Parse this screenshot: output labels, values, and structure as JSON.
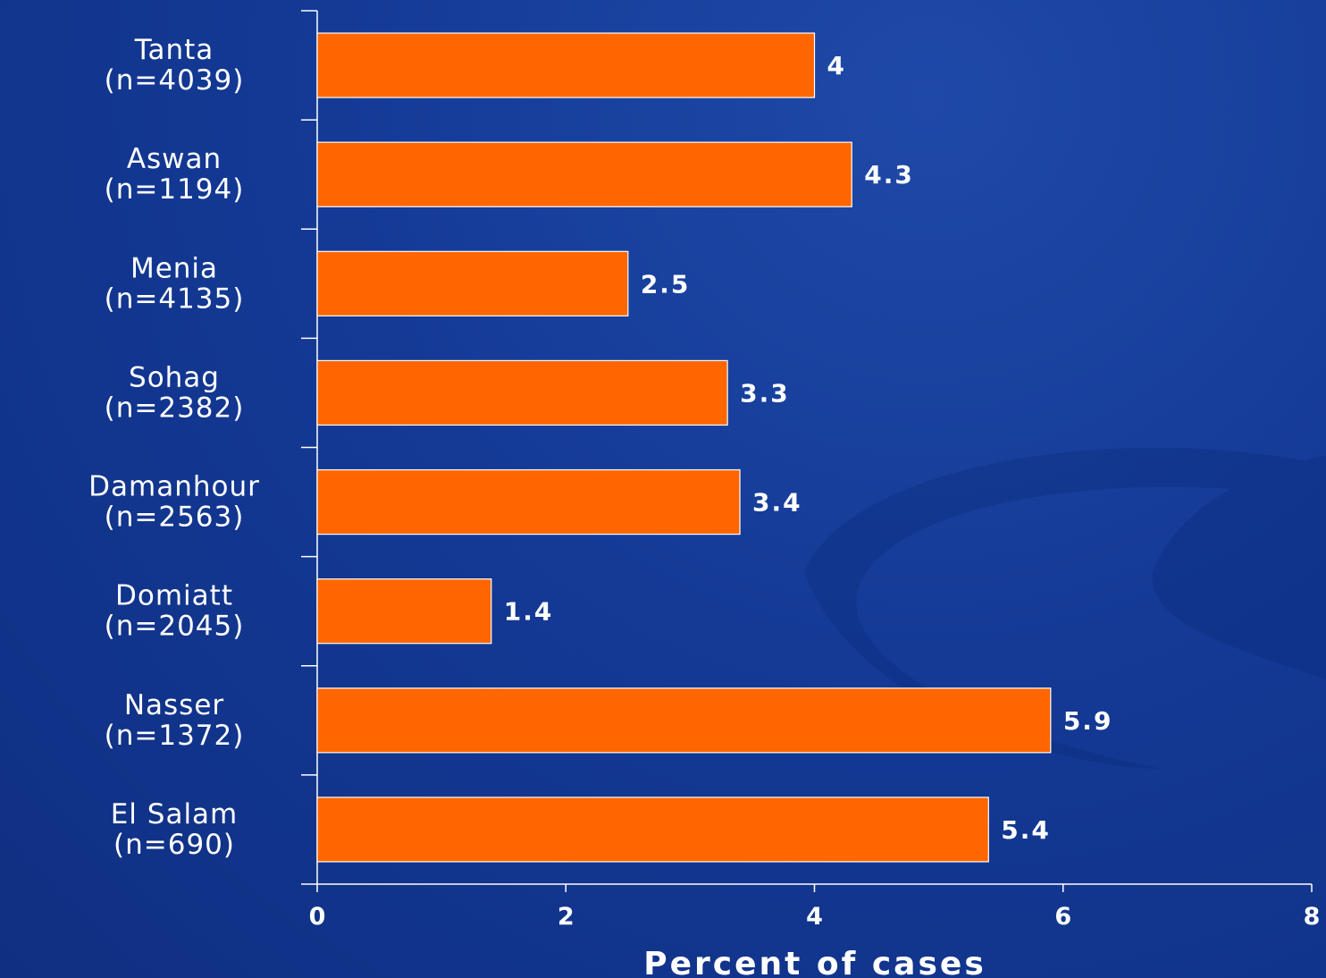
{
  "chart_data": {
    "type": "bar",
    "orientation": "horizontal",
    "categories": [
      {
        "name": "Tanta",
        "n": "(n=4039)"
      },
      {
        "name": "Aswan",
        "n": "(n=1194)"
      },
      {
        "name": "Menia",
        "n": "(n=4135)"
      },
      {
        "name": "Sohag",
        "n": "(n=2382)"
      },
      {
        "name": "Damanhour",
        "n": "(n=2563)"
      },
      {
        "name": "Domiatt",
        "n": "(n=2045)"
      },
      {
        "name": "Nasser",
        "n": "(n=1372)"
      },
      {
        "name": "El Salam",
        "n": "(n=690)"
      }
    ],
    "values": [
      4,
      4.3,
      2.5,
      3.3,
      3.4,
      1.4,
      5.9,
      5.4
    ],
    "data_labels": [
      "4",
      "4.3",
      "2.5",
      "3.3",
      "3.4",
      "1.4",
      "5.9",
      "5.4"
    ],
    "xlabel": "Percent of cases",
    "xlim": [
      0,
      8
    ],
    "xticks": [
      0,
      2,
      4,
      6,
      8
    ],
    "grid": false,
    "legend": "none",
    "colors": {
      "bar": "#ff6600",
      "bar_outline": "#ffffff",
      "background": "#143a96",
      "text": "#ffffff"
    }
  }
}
